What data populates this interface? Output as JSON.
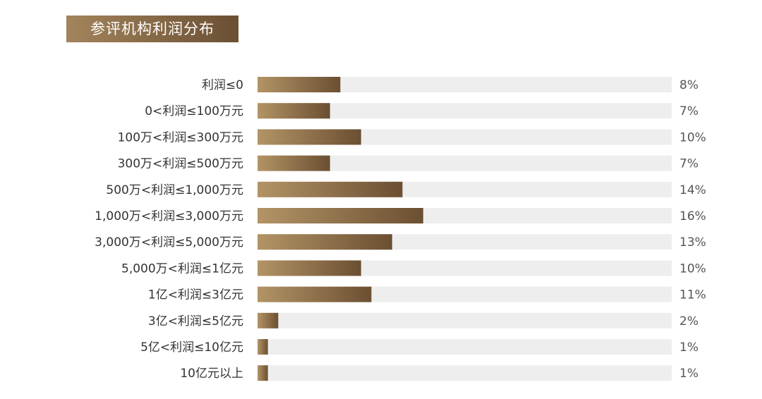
{
  "chart_data": {
    "type": "bar",
    "orientation": "horizontal",
    "title": "参评机构利润分布",
    "categories": [
      "利润≤0",
      "0<利润≤100万元",
      "100万<利润≤300万元",
      "300万<利润≤500万元",
      "500万<利润≤1,000万元",
      "1,000万<利润≤3,000万元",
      "3,000万<利润≤5,000万元",
      "5,000万<利润≤1亿元",
      "1亿<利润≤3亿元",
      "3亿<利润≤5亿元",
      "5亿<利润≤10亿元",
      "10亿元以上"
    ],
    "values": [
      8,
      7,
      10,
      7,
      14,
      16,
      13,
      10,
      11,
      2,
      1,
      1
    ],
    "value_labels": [
      "8%",
      "7%",
      "10%",
      "7%",
      "14%",
      "16%",
      "13%",
      "10%",
      "11%",
      "2%",
      "1%",
      "1%"
    ],
    "xlim": [
      0,
      40
    ],
    "grid": false,
    "colors": {
      "bar_start": "#b39466",
      "bar_end": "#6b4f32",
      "track": "#eeeeee"
    }
  }
}
